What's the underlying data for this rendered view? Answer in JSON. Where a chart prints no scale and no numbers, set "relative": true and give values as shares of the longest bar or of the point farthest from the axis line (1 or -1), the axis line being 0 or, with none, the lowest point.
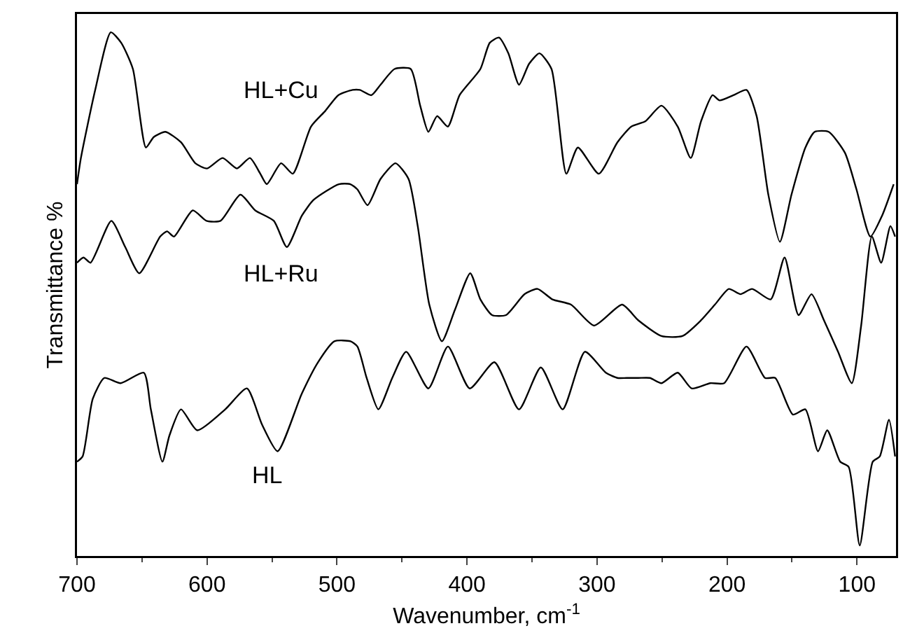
{
  "chart_data": {
    "type": "line",
    "relative": true,
    "xlabel": "Wavenumber, cm$^{-1}$",
    "ylabel": "Transmittance %",
    "xlim": [
      700,
      70
    ],
    "xticks": [
      700,
      600,
      500,
      400,
      300,
      200,
      100
    ],
    "grid": false,
    "legend": false,
    "marker": "none",
    "line_style": "solid",
    "series": [
      {
        "name": "HL+Cu",
        "color": "#000000",
        "x": [
          700,
          697,
          686,
          674,
          666,
          657,
          647,
          641,
          632,
          620,
          609,
          600,
          588,
          577,
          567,
          559,
          554,
          543,
          534,
          520,
          509,
          499,
          488,
          482.5,
          473.6,
          466.5,
          455.7,
          443.3,
          436,
          429.7,
          423,
          414.7,
          405.7,
          389.7,
          382.5,
          375.4,
          368.2,
          360,
          352.2,
          344.3,
          335,
          323.6,
          314.7,
          298.6,
          284.3,
          273.6,
          262.9,
          250.4,
          237.9,
          227.9,
          220,
          211.1,
          205.7,
          195,
          185,
          177.2,
          168.2,
          159.3,
          150.4,
          139.7,
          132.5,
          121.8,
          109.3,
          100.4,
          89.7,
          80.7,
          71.8
        ],
        "values": [
          0.71,
          0.76,
          0.89,
          1.0,
          0.98,
          0.93,
          0.78,
          0.8,
          0.81,
          0.79,
          0.75,
          0.74,
          0.76,
          0.74,
          0.76,
          0.73,
          0.71,
          0.75,
          0.73,
          0.82,
          0.85,
          0.88,
          0.89,
          0.89,
          0.88,
          0.9,
          0.93,
          0.93,
          0.86,
          0.81,
          0.84,
          0.82,
          0.88,
          0.93,
          0.98,
          0.99,
          0.96,
          0.9,
          0.94,
          0.96,
          0.93,
          0.73,
          0.78,
          0.73,
          0.79,
          0.82,
          0.83,
          0.86,
          0.82,
          0.76,
          0.83,
          0.88,
          0.87,
          0.88,
          0.89,
          0.84,
          0.69,
          0.6,
          0.69,
          0.78,
          0.81,
          0.81,
          0.77,
          0.7,
          0.61,
          0.65,
          0.71
        ]
      },
      {
        "name": "HL+Ru",
        "color": "#000000",
        "x": [
          700,
          695,
          689.6,
          673.6,
          662.9,
          652.1,
          636,
          630.7,
          625.4,
          611,
          600.4,
          589.6,
          574.3,
          562.9,
          548.6,
          538.6,
          527,
          518,
          498.6,
          489.7,
          484.3,
          476.5,
          466.5,
          455,
          445,
          437.9,
          429,
          419.3,
          409.3,
          397.5,
          389.7,
          380.7,
          370,
          355.7,
          345.7,
          334.3,
          320,
          302.2,
          280.7,
          268.2,
          250.4,
          234.3,
          220,
          209.3,
          198.6,
          189.6,
          180.7,
          166.4,
          155.7,
          145,
          135,
          125.4,
          114.6,
          104,
          96.8,
          88.6,
          81.4,
          74.3,
          70.7
        ],
        "values": [
          0.56,
          0.57,
          0.56,
          0.64,
          0.59,
          0.54,
          0.61,
          0.62,
          0.61,
          0.66,
          0.64,
          0.64,
          0.69,
          0.66,
          0.64,
          0.59,
          0.65,
          0.68,
          0.71,
          0.71,
          0.7,
          0.67,
          0.72,
          0.75,
          0.72,
          0.63,
          0.48,
          0.41,
          0.47,
          0.54,
          0.49,
          0.46,
          0.46,
          0.5,
          0.51,
          0.49,
          0.48,
          0.44,
          0.48,
          0.45,
          0.42,
          0.42,
          0.45,
          0.48,
          0.51,
          0.5,
          0.51,
          0.49,
          0.57,
          0.46,
          0.5,
          0.45,
          0.39,
          0.33,
          0.44,
          0.61,
          0.56,
          0.63,
          0.61
        ]
      },
      {
        "name": "HL",
        "color": "#000000",
        "x": [
          700,
          695.7,
          687.9,
          679,
          666.4,
          648.6,
          643.2,
          634.3,
          628.9,
          620,
          607.5,
          586,
          569.3,
          557.5,
          545.7,
          527.1,
          514.6,
          502,
          489.6,
          484.3,
          477.2,
          468.2,
          457.5,
          446.8,
          429.7,
          414.7,
          397.9,
          378.9,
          360,
          343.2,
          326.4,
          309.3,
          293.2,
          284.3,
          277.2,
          268.2,
          259.3,
          250.4,
          237.9,
          227.2,
          212.9,
          202.2,
          185,
          170.7,
          162.9,
          149.3,
          139.7,
          130,
          122.9,
          112.9,
          106.4,
          97.9,
          87.9,
          82.5,
          75.4,
          70.7
        ],
        "values": [
          0.18,
          0.19,
          0.3,
          0.34,
          0.33,
          0.35,
          0.28,
          0.18,
          0.23,
          0.28,
          0.24,
          0.28,
          0.32,
          0.25,
          0.2,
          0.31,
          0.37,
          0.41,
          0.41,
          0.4,
          0.34,
          0.28,
          0.34,
          0.39,
          0.32,
          0.4,
          0.32,
          0.37,
          0.28,
          0.36,
          0.28,
          0.39,
          0.35,
          0.34,
          0.34,
          0.34,
          0.34,
          0.33,
          0.35,
          0.32,
          0.33,
          0.33,
          0.4,
          0.34,
          0.34,
          0.27,
          0.28,
          0.2,
          0.24,
          0.18,
          0.17,
          0.02,
          0.18,
          0.19,
          0.26,
          0.19
        ]
      }
    ]
  }
}
